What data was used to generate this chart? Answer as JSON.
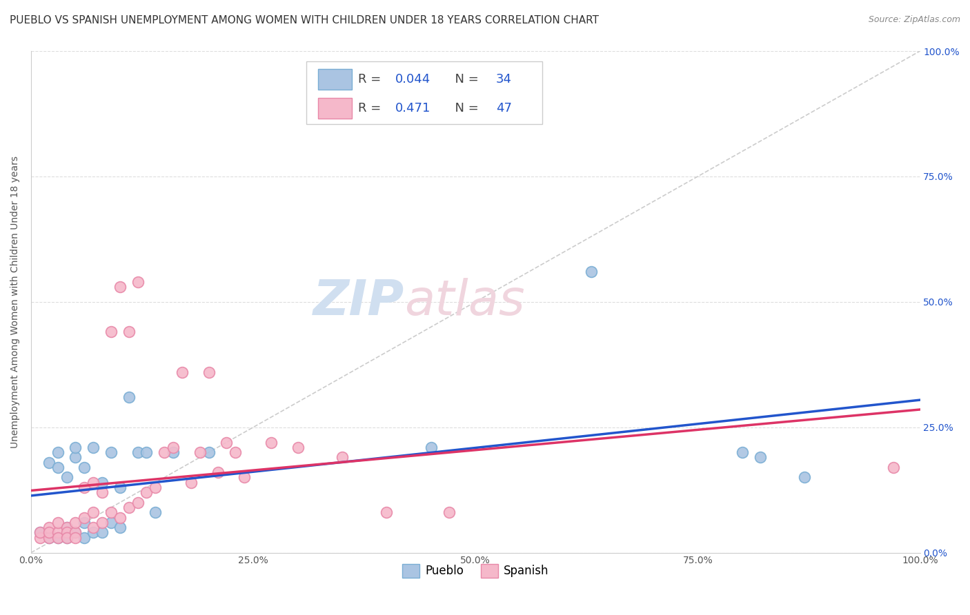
{
  "title": "PUEBLO VS SPANISH UNEMPLOYMENT AMONG WOMEN WITH CHILDREN UNDER 18 YEARS CORRELATION CHART",
  "source": "Source: ZipAtlas.com",
  "ylabel": "Unemployment Among Women with Children Under 18 years",
  "xlim": [
    0,
    1
  ],
  "ylim": [
    0,
    1
  ],
  "xticks": [
    0.0,
    0.25,
    0.5,
    0.75,
    1.0
  ],
  "yticks": [
    0.0,
    0.25,
    0.5,
    0.75,
    1.0
  ],
  "xtick_labels": [
    "0.0%",
    "25.0%",
    "50.0%",
    "75.0%",
    "100.0%"
  ],
  "ytick_labels": [
    "0.0%",
    "25.0%",
    "50.0%",
    "75.0%",
    "100.0%"
  ],
  "pueblo_color": "#aac4e2",
  "spanish_color": "#f5b8ca",
  "pueblo_edge": "#7aaed4",
  "spanish_edge": "#e888a8",
  "pueblo_line_color": "#2255cc",
  "spanish_line_color": "#dd3366",
  "ref_line_color": "#cccccc",
  "R_pueblo": 0.044,
  "N_pueblo": 34,
  "R_spanish": 0.471,
  "N_spanish": 47,
  "legend_label_pueblo": "Pueblo",
  "legend_label_spanish": "Spanish",
  "title_fontsize": 11,
  "axis_label_fontsize": 10,
  "tick_fontsize": 10,
  "background_color": "#ffffff",
  "grid_color": "#dddddd",
  "pueblo_x": [
    0.01,
    0.02,
    0.02,
    0.03,
    0.03,
    0.03,
    0.04,
    0.04,
    0.04,
    0.05,
    0.05,
    0.05,
    0.06,
    0.06,
    0.06,
    0.07,
    0.07,
    0.08,
    0.08,
    0.09,
    0.09,
    0.1,
    0.1,
    0.11,
    0.12,
    0.13,
    0.14,
    0.16,
    0.2,
    0.45,
    0.63,
    0.8,
    0.82,
    0.87
  ],
  "pueblo_y": [
    0.04,
    0.18,
    0.03,
    0.2,
    0.17,
    0.03,
    0.15,
    0.05,
    0.03,
    0.19,
    0.04,
    0.21,
    0.17,
    0.03,
    0.06,
    0.21,
    0.04,
    0.14,
    0.04,
    0.06,
    0.2,
    0.05,
    0.13,
    0.31,
    0.2,
    0.2,
    0.08,
    0.2,
    0.2,
    0.21,
    0.56,
    0.2,
    0.19,
    0.15
  ],
  "spanish_x": [
    0.01,
    0.01,
    0.02,
    0.02,
    0.02,
    0.03,
    0.03,
    0.03,
    0.04,
    0.04,
    0.04,
    0.05,
    0.05,
    0.05,
    0.06,
    0.06,
    0.07,
    0.07,
    0.07,
    0.08,
    0.08,
    0.09,
    0.09,
    0.1,
    0.1,
    0.11,
    0.11,
    0.12,
    0.12,
    0.13,
    0.14,
    0.15,
    0.16,
    0.17,
    0.18,
    0.19,
    0.2,
    0.21,
    0.22,
    0.23,
    0.24,
    0.27,
    0.3,
    0.35,
    0.4,
    0.47,
    0.97
  ],
  "spanish_y": [
    0.03,
    0.04,
    0.03,
    0.05,
    0.04,
    0.04,
    0.06,
    0.03,
    0.05,
    0.04,
    0.03,
    0.04,
    0.06,
    0.03,
    0.07,
    0.13,
    0.05,
    0.08,
    0.14,
    0.06,
    0.12,
    0.08,
    0.44,
    0.07,
    0.53,
    0.09,
    0.44,
    0.1,
    0.54,
    0.12,
    0.13,
    0.2,
    0.21,
    0.36,
    0.14,
    0.2,
    0.36,
    0.16,
    0.22,
    0.2,
    0.15,
    0.22,
    0.21,
    0.19,
    0.08,
    0.08,
    0.17
  ],
  "watermark_text": "ZIPatlas",
  "watermark_color": "#d0dff0",
  "watermark_color2": "#f0d5de"
}
